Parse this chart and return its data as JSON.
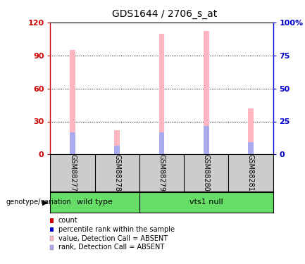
{
  "title": "GDS1644 / 2706_s_at",
  "samples": [
    "GSM88277",
    "GSM88278",
    "GSM88279",
    "GSM88280",
    "GSM88281"
  ],
  "pink_bar_heights": [
    95,
    22,
    110,
    112,
    42
  ],
  "blue_bar_heights": [
    20,
    8,
    20,
    26,
    11
  ],
  "left_ylim": [
    0,
    120
  ],
  "right_ylim": [
    0,
    100
  ],
  "left_yticks": [
    0,
    30,
    60,
    90,
    120
  ],
  "right_yticks": [
    0,
    25,
    50,
    75,
    100
  ],
  "left_yticklabels": [
    "0",
    "30",
    "60",
    "90",
    "120"
  ],
  "right_yticklabels": [
    "0",
    "25",
    "50",
    "75",
    "100%"
  ],
  "pink_color": "#FFB6C1",
  "blue_color": "#AAAAEE",
  "left_tick_color": "#CC0000",
  "right_tick_color": "#0000CC",
  "bar_width": 0.12,
  "background_color": "#FFFFFF",
  "plot_bg_color": "#FFFFFF",
  "sample_bg_color": "#CCCCCC",
  "green_color": "#66DD66",
  "genotype_label": "genotype/variation",
  "legend_items": [
    {
      "color": "#CC0000",
      "label": "count"
    },
    {
      "color": "#0000CC",
      "label": "percentile rank within the sample"
    },
    {
      "color": "#FFB6C1",
      "label": "value, Detection Call = ABSENT"
    },
    {
      "color": "#AAAAEE",
      "label": "rank, Detection Call = ABSENT"
    }
  ]
}
